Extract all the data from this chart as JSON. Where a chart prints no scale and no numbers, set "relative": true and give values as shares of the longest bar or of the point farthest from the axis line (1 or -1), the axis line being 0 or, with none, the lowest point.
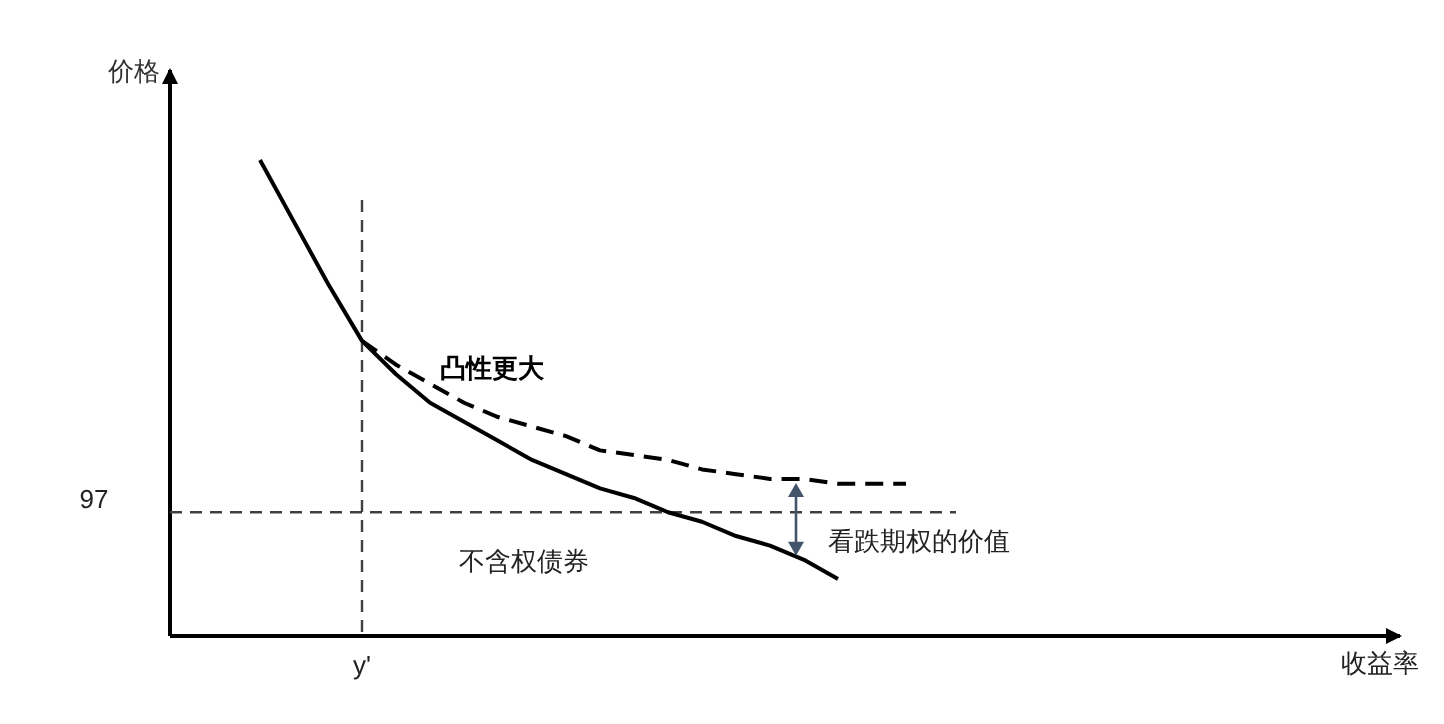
{
  "chart_data": {
    "type": "line",
    "relative": true,
    "ylabel": "价格",
    "categories": [
      null,
      null,
      null,
      null,
      null,
      null,
      null,
      null,
      null,
      null,
      null,
      null,
      null,
      null,
      null,
      null,
      null,
      null,
      null,
      null
    ],
    "series": [
      {
        "color": "#000000",
        "line_style": "solid",
        "values": [
          1.0,
          0.87,
          0.74,
          0.62,
          0.55,
          0.49,
          0.45,
          0.41,
          0.37,
          0.34,
          0.31,
          0.29,
          0.26,
          0.24,
          0.21,
          0.19,
          0.16,
          0.12,
          null,
          null
        ]
      },
      {
        "name": "凸性更大",
        "color": "#000000",
        "line_style": "dashed",
        "values": [
          null,
          null,
          null,
          0.62,
          0.57,
          0.53,
          0.49,
          0.46,
          0.44,
          0.42,
          0.39,
          0.38,
          0.37,
          0.35,
          0.34,
          0.33,
          0.33,
          0.32,
          0.32,
          0.32
        ]
      }
    ],
    "ref_lines": [
      {
        "axis": "y",
        "value": 0.26,
        "color": "#404040",
        "line_style": "dashed"
      }
    ],
    "annotations": [
      "看跌期权的价值",
      "不含权债券",
      "y'",
      "97",
      "收益率"
    ]
  }
}
